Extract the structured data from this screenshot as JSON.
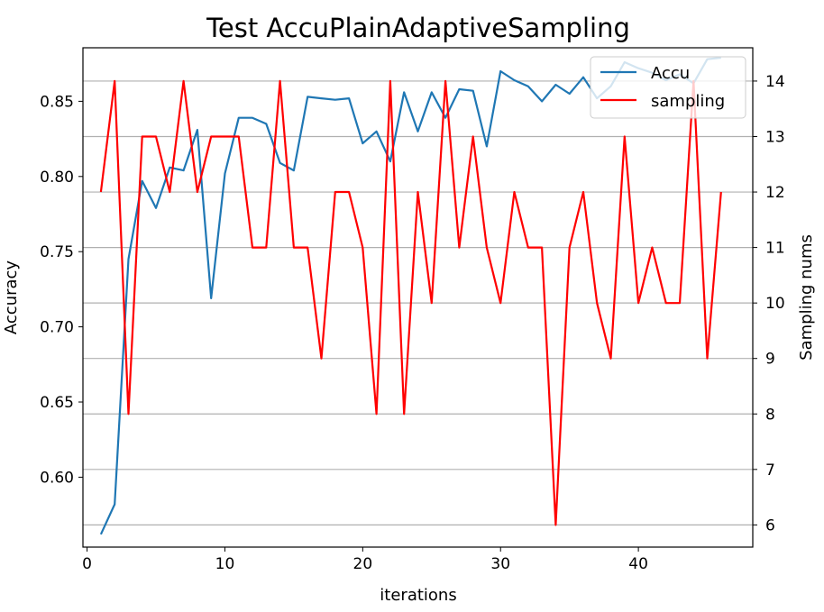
{
  "chart_data": {
    "type": "line",
    "title": "Test AccuPlainAdaptiveSampling",
    "xlabel": "iterations",
    "ylabel": "Accuracy",
    "y2label": "Sampling nums",
    "xlim": [
      -0.3,
      48.3
    ],
    "ylim": [
      0.5535,
      0.8856
    ],
    "y2lim": [
      5.6,
      14.6
    ],
    "xticks": [
      0,
      10,
      20,
      30,
      40
    ],
    "yticks": [
      0.6,
      0.65,
      0.7,
      0.75,
      0.8,
      0.85
    ],
    "ytick_labels": [
      "0.60",
      "0.65",
      "0.70",
      "0.75",
      "0.80",
      "0.85"
    ],
    "y2ticks": [
      6,
      7,
      8,
      9,
      10,
      11,
      12,
      13,
      14
    ],
    "grid": "horizontal lines at right-axis ticks",
    "legend_position": "top-right",
    "x": [
      1,
      2,
      3,
      4,
      5,
      6,
      7,
      8,
      9,
      10,
      11,
      12,
      13,
      14,
      15,
      16,
      17,
      18,
      19,
      20,
      21,
      22,
      23,
      24,
      25,
      26,
      27,
      28,
      29,
      30,
      31,
      32,
      33,
      34,
      35,
      36,
      37,
      38,
      39,
      40,
      41,
      42,
      43,
      44,
      45,
      46
    ],
    "series": [
      {
        "name": "Accu",
        "axis": "left",
        "color": "#1f77b4",
        "values": [
          0.562,
          0.582,
          0.745,
          0.797,
          0.779,
          0.806,
          0.804,
          0.831,
          0.719,
          0.802,
          0.839,
          0.839,
          0.835,
          0.809,
          0.804,
          0.853,
          0.852,
          0.851,
          0.852,
          0.822,
          0.83,
          0.81,
          0.856,
          0.83,
          0.856,
          0.839,
          0.858,
          0.857,
          0.82,
          0.87,
          0.864,
          0.86,
          0.85,
          0.861,
          0.855,
          0.866,
          0.852,
          0.86,
          0.876,
          0.872,
          0.869,
          0.864,
          0.868,
          0.862,
          0.878,
          0.879
        ]
      },
      {
        "name": "sampling",
        "axis": "right",
        "color": "#ff0000",
        "values": [
          12,
          14,
          8,
          13,
          13,
          12,
          14,
          12,
          13,
          13,
          13,
          11,
          11,
          14,
          11,
          11,
          9,
          12,
          12,
          11,
          8,
          14,
          8,
          12,
          10,
          14,
          11,
          13,
          11,
          10,
          12,
          11,
          11,
          6,
          11,
          12,
          10,
          9,
          13,
          10,
          11,
          10,
          10,
          14,
          9,
          12
        ]
      }
    ]
  }
}
